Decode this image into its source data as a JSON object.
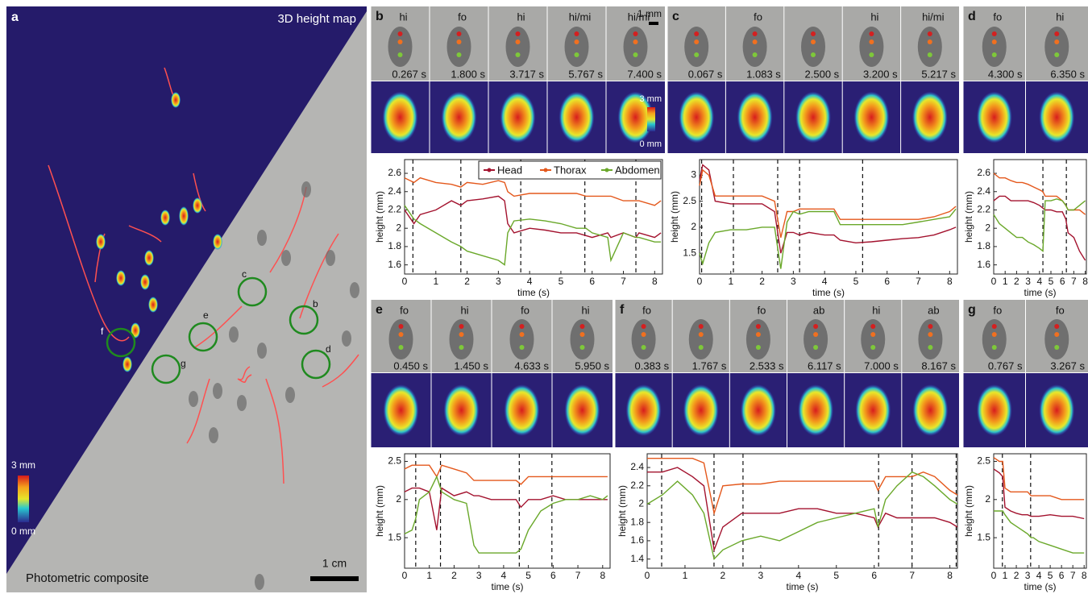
{
  "overview": {
    "label": "a",
    "title": "3D height map",
    "caption": "Photometric composite",
    "scale_bar": "1 cm",
    "colorbar": [
      "3 mm",
      "0 mm"
    ],
    "markers": [
      "c",
      "e",
      "b",
      "g",
      "d",
      "f"
    ]
  },
  "chart_data": [
    {
      "type": "line",
      "label": "b",
      "xlabel": "time (s)",
      "ylabel": "height (mm)",
      "legend": true,
      "scale_bar": "1 mm",
      "colorbar": [
        "3 mm",
        "0 mm"
      ],
      "behaviors": [
        "hi",
        "fo",
        "hi",
        "hi/mi",
        "hi/mi"
      ],
      "events": [
        {
          "value": 0.267,
          "label": "0.267 s"
        },
        {
          "value": 1.8,
          "label": "1.800 s"
        },
        {
          "value": 3.717,
          "label": "3.717 s"
        },
        {
          "value": 5.767,
          "label": "5.767 s"
        },
        {
          "value": 7.4,
          "label": "7.400 s"
        }
      ],
      "xlim": [
        0,
        8.25
      ],
      "xticks": [
        0,
        1,
        2,
        3,
        4,
        5,
        6,
        7,
        8
      ],
      "ylim": [
        1.5,
        2.75
      ],
      "yticks": [
        1.6,
        1.8,
        2,
        2.2,
        2.4,
        2.6
      ],
      "x": [
        0,
        0.3,
        0.5,
        1,
        1.5,
        1.8,
        2,
        2.5,
        3,
        3.2,
        3.3,
        3.5,
        4,
        4.5,
        5,
        5.5,
        5.8,
        6,
        6.5,
        6.6,
        7,
        7.4,
        7.5,
        8,
        8.2
      ],
      "series": [
        {
          "name": "Head",
          "color": "#a3122e",
          "values": [
            2.2,
            2.05,
            2.15,
            2.2,
            2.3,
            2.25,
            2.3,
            2.32,
            2.35,
            2.3,
            2.05,
            1.95,
            2.0,
            1.98,
            1.95,
            1.95,
            1.92,
            1.9,
            1.95,
            1.9,
            1.95,
            1.9,
            1.95,
            1.9,
            1.95
          ]
        },
        {
          "name": "Thorax",
          "color": "#e4581c",
          "values": [
            2.55,
            2.5,
            2.55,
            2.5,
            2.48,
            2.45,
            2.5,
            2.48,
            2.52,
            2.5,
            2.4,
            2.35,
            2.38,
            2.38,
            2.38,
            2.38,
            2.35,
            2.35,
            2.35,
            2.35,
            2.3,
            2.3,
            2.3,
            2.25,
            2.3
          ]
        },
        {
          "name": "Abdomen",
          "color": "#6aa82a",
          "values": [
            2.25,
            2.1,
            2.05,
            1.95,
            1.85,
            1.8,
            1.75,
            1.7,
            1.65,
            1.6,
            1.95,
            2.08,
            2.1,
            2.08,
            2.05,
            2.0,
            2.0,
            1.95,
            1.9,
            1.65,
            1.95,
            1.9,
            1.9,
            1.85,
            1.85
          ]
        }
      ]
    },
    {
      "type": "line",
      "label": "c",
      "xlabel": "time (s)",
      "ylabel": "height (mm)",
      "legend": false,
      "behaviors": [
        null,
        "fo",
        null,
        "hi",
        "hi/mi"
      ],
      "events": [
        {
          "value": 0.067,
          "label": "0.067 s"
        },
        {
          "value": 1.083,
          "label": "1.083 s"
        },
        {
          "value": 2.5,
          "label": "2.500 s"
        },
        {
          "value": 3.2,
          "label": "3.200 s"
        },
        {
          "value": 5.217,
          "label": "5.217 s"
        }
      ],
      "xlim": [
        0,
        8.25
      ],
      "xticks": [
        0,
        1,
        2,
        3,
        4,
        5,
        6,
        7,
        8
      ],
      "ylim": [
        1.1,
        3.3
      ],
      "yticks": [
        1.5,
        2,
        2.5,
        3
      ],
      "x": [
        0,
        0.1,
        0.3,
        0.5,
        1,
        1.5,
        2,
        2.4,
        2.6,
        2.8,
        3,
        3.2,
        3.5,
        4,
        4.3,
        4.5,
        5,
        5.5,
        6,
        6.5,
        7,
        7.5,
        8,
        8.2
      ],
      "series": [
        {
          "name": "Head",
          "color": "#a3122e",
          "values": [
            2.9,
            3.2,
            3.1,
            2.5,
            2.45,
            2.45,
            2.45,
            2.3,
            1.5,
            1.9,
            1.9,
            1.85,
            1.9,
            1.85,
            1.85,
            1.75,
            1.7,
            1.72,
            1.75,
            1.78,
            1.8,
            1.85,
            1.95,
            2.0
          ]
        },
        {
          "name": "Thorax",
          "color": "#e4581c",
          "values": [
            2.8,
            3.1,
            3.0,
            2.6,
            2.6,
            2.6,
            2.6,
            2.5,
            1.8,
            2.3,
            2.3,
            2.35,
            2.35,
            2.35,
            2.35,
            2.15,
            2.15,
            2.15,
            2.15,
            2.15,
            2.15,
            2.2,
            2.3,
            2.4
          ]
        },
        {
          "name": "Abdomen",
          "color": "#6aa82a",
          "values": [
            1.5,
            1.3,
            1.7,
            1.9,
            1.95,
            1.95,
            2.0,
            2.0,
            1.2,
            2.1,
            2.3,
            2.25,
            2.3,
            2.3,
            2.3,
            2.05,
            2.05,
            2.05,
            2.05,
            2.05,
            2.1,
            2.15,
            2.2,
            2.35
          ]
        }
      ]
    },
    {
      "type": "line",
      "label": "d",
      "xlabel": "time (s)",
      "ylabel": "height (mm)",
      "legend": false,
      "behaviors": [
        "fo",
        "hi"
      ],
      "events": [
        {
          "value": 4.3,
          "label": "4.300 s"
        },
        {
          "value": 6.35,
          "label": "6.350 s"
        }
      ],
      "xlim": [
        0,
        8.1
      ],
      "xticks": [
        0,
        1,
        2,
        3,
        4,
        5,
        6,
        7,
        8
      ],
      "ylim": [
        1.5,
        2.75
      ],
      "yticks": [
        1.6,
        1.8,
        2,
        2.2,
        2.4,
        2.6
      ],
      "x": [
        0,
        0.5,
        1,
        1.5,
        2,
        2.5,
        3,
        3.5,
        4,
        4.3,
        4.5,
        5,
        5.5,
        6,
        6.3,
        6.5,
        7,
        7.5,
        8
      ],
      "series": [
        {
          "name": "Head",
          "color": "#a3122e",
          "values": [
            2.3,
            2.35,
            2.35,
            2.3,
            2.3,
            2.3,
            2.3,
            2.28,
            2.25,
            2.22,
            2.2,
            2.2,
            2.18,
            2.18,
            2.1,
            1.95,
            1.9,
            1.75,
            1.65
          ]
        },
        {
          "name": "Thorax",
          "color": "#e4581c",
          "values": [
            2.6,
            2.55,
            2.55,
            2.52,
            2.5,
            2.5,
            2.48,
            2.45,
            2.42,
            2.4,
            2.35,
            2.35,
            2.35,
            2.3,
            2.25,
            2.2,
            2.2,
            2.2,
            2.15
          ]
        },
        {
          "name": "Abdomen",
          "color": "#6aa82a",
          "values": [
            2.15,
            2.05,
            2.0,
            1.95,
            1.9,
            1.9,
            1.85,
            1.82,
            1.78,
            1.75,
            2.3,
            2.3,
            2.32,
            2.3,
            2.25,
            2.2,
            2.2,
            2.25,
            2.3
          ]
        }
      ]
    },
    {
      "type": "line",
      "label": "e",
      "xlabel": "time (s)",
      "ylabel": "height (mm)",
      "legend": false,
      "behaviors": [
        "fo",
        "hi",
        "fo",
        "hi"
      ],
      "events": [
        {
          "value": 0.45,
          "label": "0.450 s"
        },
        {
          "value": 1.45,
          "label": "1.450 s"
        },
        {
          "value": 4.633,
          "label": "4.633 s"
        },
        {
          "value": 5.95,
          "label": "5.950 s"
        }
      ],
      "xlim": [
        0,
        8.3
      ],
      "xticks": [
        0,
        1,
        2,
        3,
        4,
        5,
        6,
        7,
        8
      ],
      "ylim": [
        1.1,
        2.6
      ],
      "yticks": [
        1.5,
        2,
        2.5
      ],
      "x": [
        0,
        0.3,
        0.45,
        0.6,
        1,
        1.3,
        1.5,
        2,
        2.5,
        2.8,
        3,
        3.5,
        4,
        4.5,
        4.7,
        5,
        5.5,
        6,
        6.5,
        7,
        7.5,
        8,
        8.2
      ],
      "series": [
        {
          "name": "Head",
          "color": "#a3122e",
          "values": [
            2.1,
            2.15,
            2.15,
            2.15,
            2.1,
            1.6,
            2.15,
            2.05,
            2.1,
            2.05,
            2.05,
            2.0,
            2.0,
            2.0,
            1.9,
            2.0,
            2.0,
            2.05,
            2.0,
            2.0,
            2.0,
            2.0,
            2.0
          ]
        },
        {
          "name": "Thorax",
          "color": "#e4581c",
          "values": [
            2.4,
            2.45,
            2.45,
            2.45,
            2.45,
            2.3,
            2.45,
            2.4,
            2.35,
            2.25,
            2.25,
            2.25,
            2.25,
            2.25,
            2.2,
            2.3,
            2.3,
            2.3,
            2.3,
            2.3,
            2.3,
            2.3,
            2.3
          ]
        },
        {
          "name": "Abdomen",
          "color": "#6aa82a",
          "values": [
            1.55,
            1.6,
            1.75,
            2.0,
            2.1,
            2.3,
            2.1,
            2.0,
            1.95,
            1.4,
            1.3,
            1.3,
            1.3,
            1.3,
            1.35,
            1.6,
            1.85,
            1.95,
            2.0,
            2.0,
            2.05,
            2.0,
            2.05
          ]
        }
      ]
    },
    {
      "type": "line",
      "label": "f",
      "xlabel": "time (s)",
      "ylabel": "height (mm)",
      "legend": false,
      "behaviors": [
        "fo",
        null,
        "fo",
        "ab",
        "hi",
        "ab"
      ],
      "events": [
        {
          "value": 0.383,
          "label": "0.383 s"
        },
        {
          "value": 1.767,
          "label": "1.767 s"
        },
        {
          "value": 2.533,
          "label": "2.533 s"
        },
        {
          "value": 6.117,
          "label": "6.117 s"
        },
        {
          "value": 7.0,
          "label": "7.000 s"
        },
        {
          "value": 8.167,
          "label": "8.167 s"
        }
      ],
      "xlim": [
        0,
        8.2
      ],
      "xticks": [
        0,
        1,
        2,
        3,
        4,
        5,
        6,
        7,
        8
      ],
      "ylim": [
        1.3,
        2.55
      ],
      "yticks": [
        1.4,
        1.6,
        1.8,
        2,
        2.2,
        2.4
      ],
      "x": [
        0,
        0.4,
        0.8,
        1.2,
        1.5,
        1.77,
        2,
        2.5,
        3,
        3.5,
        4,
        4.5,
        5,
        5.5,
        6,
        6.1,
        6.3,
        6.6,
        7,
        7.3,
        7.6,
        8,
        8.2
      ],
      "series": [
        {
          "name": "Head",
          "color": "#a3122e",
          "values": [
            2.35,
            2.35,
            2.4,
            2.3,
            2.2,
            1.5,
            1.75,
            1.9,
            1.9,
            1.9,
            1.95,
            1.95,
            1.9,
            1.9,
            1.85,
            1.75,
            1.9,
            1.85,
            1.85,
            1.85,
            1.85,
            1.8,
            1.75
          ]
        },
        {
          "name": "Thorax",
          "color": "#e4581c",
          "values": [
            2.5,
            2.5,
            2.5,
            2.5,
            2.45,
            1.9,
            2.2,
            2.22,
            2.22,
            2.25,
            2.25,
            2.25,
            2.25,
            2.25,
            2.25,
            2.15,
            2.3,
            2.3,
            2.3,
            2.35,
            2.3,
            2.15,
            2.1
          ]
        },
        {
          "name": "Abdomen",
          "color": "#6aa82a",
          "values": [
            2.0,
            2.1,
            2.25,
            2.1,
            1.9,
            1.4,
            1.5,
            1.6,
            1.65,
            1.6,
            1.7,
            1.8,
            1.85,
            1.9,
            1.95,
            1.75,
            2.05,
            2.2,
            2.35,
            2.3,
            2.2,
            2.05,
            2.0
          ]
        }
      ]
    },
    {
      "type": "line",
      "label": "g",
      "xlabel": "time (s)",
      "ylabel": "height (mm)",
      "legend": false,
      "behaviors": [
        "fo",
        "fo"
      ],
      "events": [
        {
          "value": 0.767,
          "label": "0.767 s"
        },
        {
          "value": 3.267,
          "label": "3.267 s"
        }
      ],
      "xlim": [
        0,
        8.2
      ],
      "xticks": [
        0,
        1,
        2,
        3,
        4,
        5,
        6,
        7,
        8
      ],
      "ylim": [
        1.1,
        2.6
      ],
      "yticks": [
        1.5,
        2,
        2.5
      ],
      "x": [
        0,
        0.5,
        0.8,
        1,
        1.5,
        2,
        2.5,
        3,
        3.3,
        3.5,
        4,
        5,
        6,
        7,
        8
      ],
      "series": [
        {
          "name": "Head",
          "color": "#a3122e",
          "values": [
            2.4,
            2.35,
            2.3,
            1.9,
            1.85,
            1.82,
            1.8,
            1.8,
            1.78,
            1.78,
            1.78,
            1.8,
            1.78,
            1.78,
            1.75
          ]
        },
        {
          "name": "Thorax",
          "color": "#e4581c",
          "values": [
            2.55,
            2.5,
            2.5,
            2.15,
            2.1,
            2.1,
            2.1,
            2.1,
            2.05,
            2.05,
            2.05,
            2.05,
            2.0,
            2.0,
            2.0
          ]
        },
        {
          "name": "Abdomen",
          "color": "#6aa82a",
          "values": [
            1.85,
            1.85,
            1.85,
            1.8,
            1.7,
            1.65,
            1.6,
            1.55,
            1.5,
            1.5,
            1.45,
            1.4,
            1.35,
            1.3,
            1.3
          ]
        }
      ]
    }
  ]
}
